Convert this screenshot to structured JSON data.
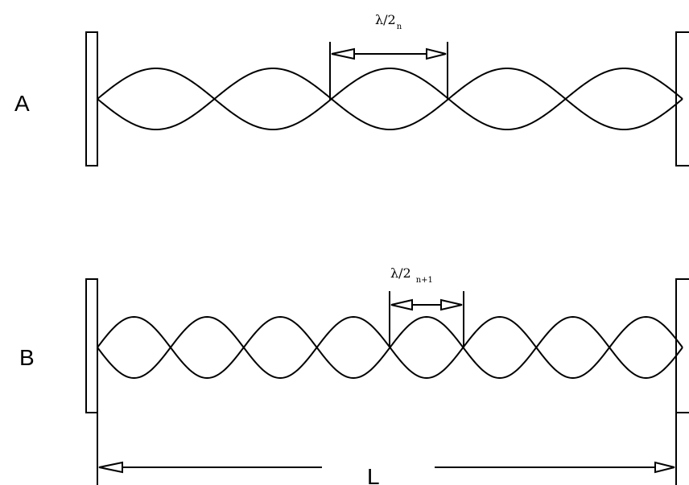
{
  "panels": {
    "a": {
      "label": "A",
      "wavelength_label": "λ/2",
      "wavelength_subscript": "n",
      "antinode_count": 5
    },
    "b": {
      "label": "B",
      "wavelength_label": "λ/2",
      "wavelength_subscript": "n+1",
      "antinode_count": 8
    }
  },
  "cavity": {
    "length_label": "L"
  }
}
